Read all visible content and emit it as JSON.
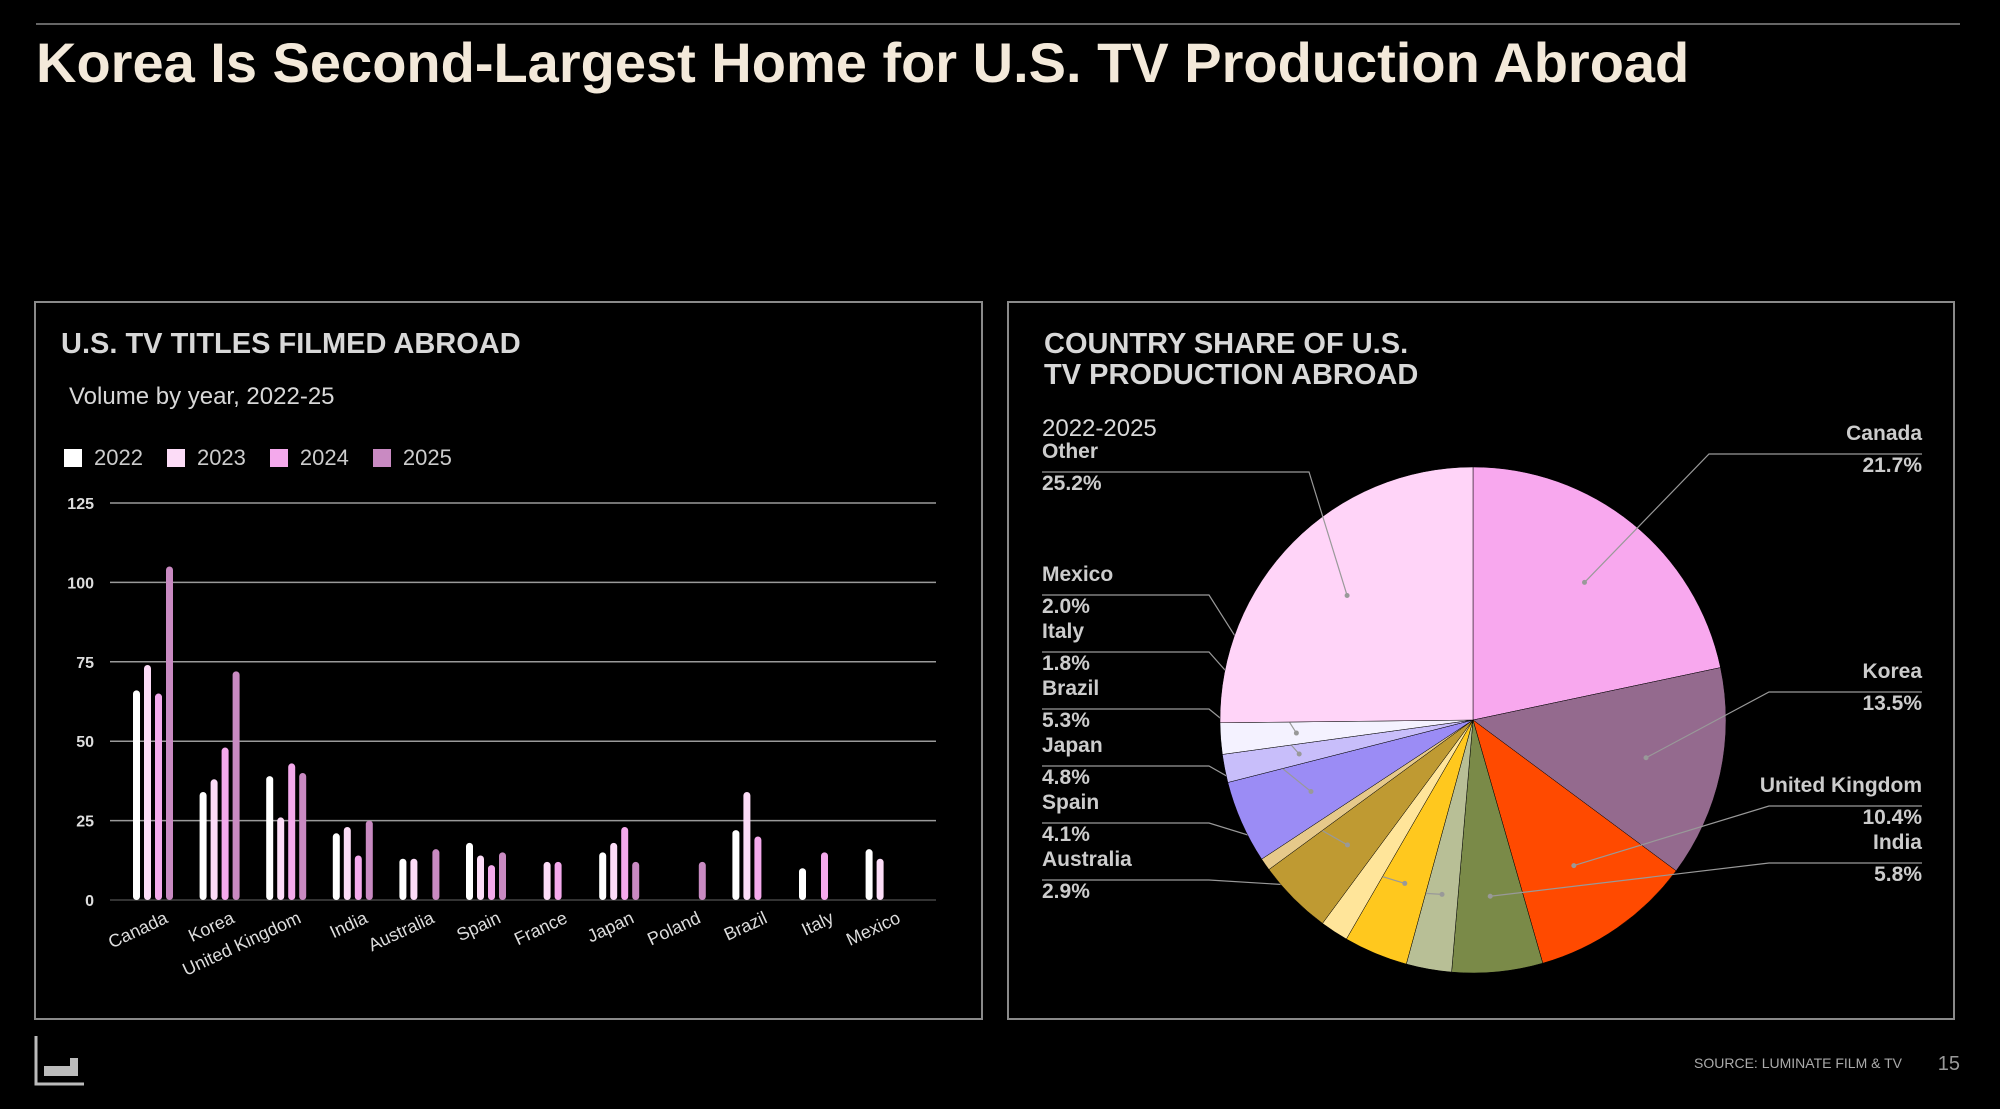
{
  "title": "Korea Is Second-Largest Home for U.S. TV Production Abroad",
  "left_panel": {
    "title": "U.S. TV TITLES FILMED ABROAD",
    "subtitle": "Volume by year, 2022-25"
  },
  "right_panel": {
    "title_line1": "COUNTRY SHARE OF U.S.",
    "title_line2": "TV PRODUCTION ABROAD",
    "subtitle": "2022-2025"
  },
  "footer": {
    "source": "SOURCE: LUMINATE FILM & TV",
    "page_number": "15"
  },
  "colors": {
    "background": "#000000",
    "title": "#f3e9da",
    "grid": "#9a9a9a"
  },
  "chart_data": [
    {
      "type": "bar",
      "title": "U.S. TV TITLES FILMED ABROAD",
      "subtitle": "Volume by year, 2022-25",
      "categories": [
        "Canada",
        "Korea",
        "United Kingdom",
        "India",
        "Australia",
        "Spain",
        "France",
        "Japan",
        "Poland",
        "Brazil",
        "Italy",
        "Mexico"
      ],
      "ylim": [
        0,
        125
      ],
      "yticks": [
        0,
        25,
        50,
        75,
        100,
        125
      ],
      "legend_position": "top-left",
      "series": [
        {
          "name": "2022",
          "color": "#ffffff",
          "values": [
            66,
            34,
            39,
            21,
            13,
            18,
            0,
            15,
            0,
            22,
            10,
            16
          ]
        },
        {
          "name": "2023",
          "color": "#fcdcf7",
          "values": [
            74,
            38,
            26,
            23,
            13,
            14,
            12,
            18,
            0,
            34,
            0,
            13
          ]
        },
        {
          "name": "2024",
          "color": "#f4a9ec",
          "values": [
            65,
            48,
            43,
            14,
            0,
            11,
            12,
            23,
            0,
            20,
            15,
            0
          ]
        },
        {
          "name": "2025",
          "color": "#c98ac2",
          "values": [
            105,
            72,
            40,
            25,
            16,
            15,
            0,
            12,
            12,
            0,
            0,
            0
          ]
        }
      ]
    },
    {
      "type": "pie",
      "title": "COUNTRY SHARE OF U.S. TV PRODUCTION ABROAD",
      "subtitle": "2022-2025",
      "slices": [
        {
          "label": "Canada",
          "value": 21.7,
          "display": "21.7%",
          "color": "#f8a8ee",
          "side": "right"
        },
        {
          "label": "Korea",
          "value": 13.5,
          "display": "13.5%",
          "color": "#946a8e",
          "side": "right"
        },
        {
          "label": "United Kingdom",
          "value": 10.4,
          "display": "10.4%",
          "color": "#ff4a00",
          "side": "right"
        },
        {
          "label": "India",
          "value": 5.8,
          "display": "5.8%",
          "color": "#7a8a48",
          "side": "right"
        },
        {
          "label": "Australia",
          "value": 2.9,
          "display": "2.9%",
          "color": "#b8bf96",
          "side": "left"
        },
        {
          "label": "Spain",
          "value": 4.1,
          "display": "4.1%",
          "color": "#ffc81e",
          "side": "left"
        },
        {
          "label": "",
          "value": 1.8,
          "display": "",
          "color": "#ffe59a",
          "side": "none"
        },
        {
          "label": "Japan",
          "value": 4.8,
          "display": "4.8%",
          "color": "#bf9a32",
          "side": "left"
        },
        {
          "label": "",
          "value": 0.8,
          "display": "",
          "color": "#e6c98a",
          "side": "none"
        },
        {
          "label": "Brazil",
          "value": 5.3,
          "display": "5.3%",
          "color": "#9b8cf5",
          "side": "left"
        },
        {
          "label": "Italy",
          "value": 1.8,
          "display": "1.8%",
          "color": "#c8befa",
          "side": "left"
        },
        {
          "label": "Mexico",
          "value": 2.0,
          "display": "2.0%",
          "color": "#f4f2ff",
          "side": "left"
        },
        {
          "label": "Other",
          "value": 25.2,
          "display": "25.2%",
          "color": "#ffd4f8",
          "side": "left"
        }
      ]
    }
  ]
}
